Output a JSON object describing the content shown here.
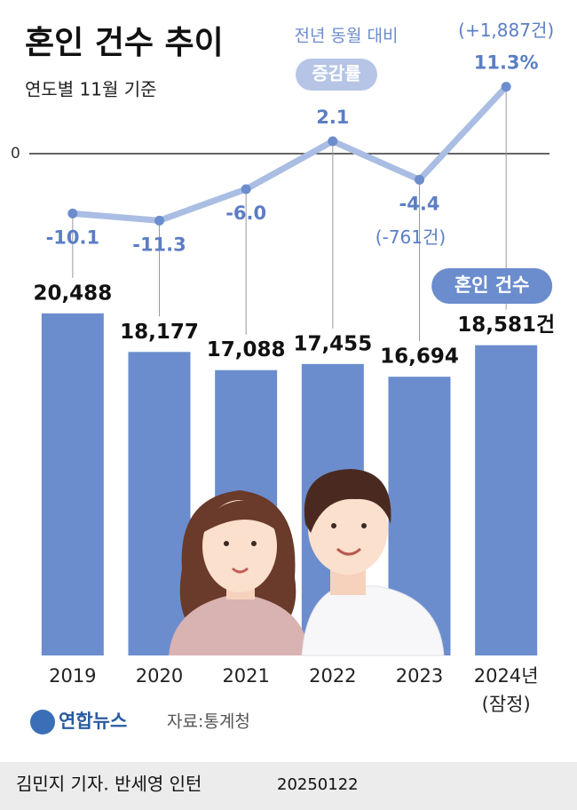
{
  "chart_data": {
    "type": "bar",
    "title": "혼인 건수 추이",
    "subtitle": "연도별 11월 기준",
    "categories": [
      "2019",
      "2020",
      "2021",
      "2022",
      "2023",
      "2024년"
    ],
    "ylim": [
      0,
      25000
    ],
    "y2lim": [
      -15,
      15
    ],
    "y2ticks": [
      0
    ],
    "series": [
      {
        "name": "혼인 건수",
        "type": "bar",
        "color": "#6b8dcd",
        "values": [
          20488,
          18177,
          17088,
          17455,
          16694,
          18581
        ],
        "value_labels": [
          "20,488",
          "18,177",
          "17,088",
          "17,455",
          "16,694",
          "18,581건"
        ]
      },
      {
        "name": "증감률",
        "type": "line",
        "axis": "y2",
        "color": "#aabde3",
        "marker_color": "#6b8dcd",
        "values": [
          -10.1,
          -11.3,
          -6.0,
          2.1,
          -4.4,
          11.3
        ],
        "value_labels": [
          "-10.1",
          "-11.3",
          "-6.0",
          "2.1",
          "-4.4",
          "11.3%"
        ]
      }
    ],
    "annotations": [
      "전년 동월 대비",
      "(-761건)",
      "(+1,887건)",
      "(잠정)"
    ],
    "logo": "연합뉴스",
    "source": "자료:통계청",
    "credit": "김민지 기자. 반세영 인턴",
    "date": "20250122"
  }
}
